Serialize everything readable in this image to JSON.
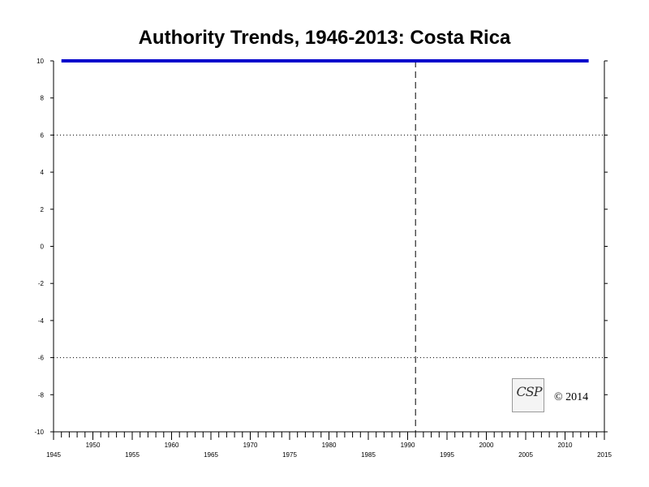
{
  "chart_data": {
    "type": "line",
    "title": "Authority Trends, 1946-2013: Costa Rica",
    "xlabel": "",
    "ylabel": "",
    "xlim": [
      1945,
      2015
    ],
    "ylim": [
      -10,
      10
    ],
    "y_ticks": [
      10,
      8,
      6,
      4,
      2,
      0,
      -2,
      -4,
      -6,
      -8,
      -10
    ],
    "x_ticks_lower": [
      1945,
      1955,
      1965,
      1975,
      1985,
      1995,
      2005,
      2015
    ],
    "x_ticks_upper": [
      1950,
      1960,
      1970,
      1980,
      1990,
      2000,
      2010
    ],
    "series": [
      {
        "x": [
          1946,
          2013
        ],
        "values": [
          10,
          10
        ],
        "color": "#0000cc"
      }
    ],
    "reference_lines": {
      "horizontal_dotted": [
        6,
        -6
      ],
      "vertical_dashed": [
        1991
      ]
    },
    "grid": false
  },
  "logo": {
    "text": "CSP"
  },
  "copyright": "© 2014"
}
